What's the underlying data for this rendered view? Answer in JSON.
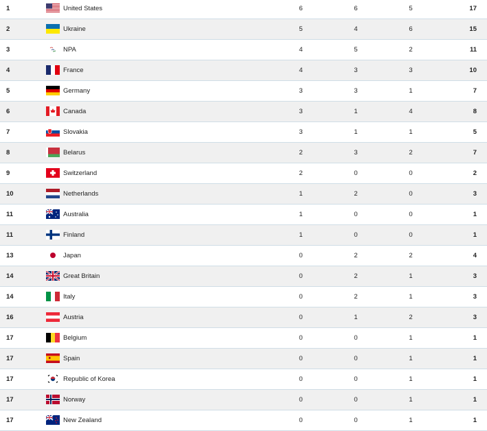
{
  "rows": [
    {
      "rank": "1",
      "country": "United States",
      "flag": "us-flag-icon",
      "gold": "6",
      "silver": "6",
      "bronze": "5",
      "total": "17"
    },
    {
      "rank": "2",
      "country": "Ukraine",
      "flag": "ukraine-flag-icon",
      "gold": "5",
      "silver": "4",
      "bronze": "6",
      "total": "15"
    },
    {
      "rank": "3",
      "country": "NPA",
      "flag": "paralympic-flag-icon",
      "gold": "4",
      "silver": "5",
      "bronze": "2",
      "total": "11"
    },
    {
      "rank": "4",
      "country": "France",
      "flag": "france-flag-icon",
      "gold": "4",
      "silver": "3",
      "bronze": "3",
      "total": "10"
    },
    {
      "rank": "5",
      "country": "Germany",
      "flag": "germany-flag-icon",
      "gold": "3",
      "silver": "3",
      "bronze": "1",
      "total": "7"
    },
    {
      "rank": "6",
      "country": "Canada",
      "flag": "canada-flag-icon",
      "gold": "3",
      "silver": "1",
      "bronze": "4",
      "total": "8"
    },
    {
      "rank": "7",
      "country": "Slovakia",
      "flag": "slovakia-flag-icon",
      "gold": "3",
      "silver": "1",
      "bronze": "1",
      "total": "5"
    },
    {
      "rank": "8",
      "country": "Belarus",
      "flag": "belarus-flag-icon",
      "gold": "2",
      "silver": "3",
      "bronze": "2",
      "total": "7"
    },
    {
      "rank": "9",
      "country": "Switzerland",
      "flag": "switzerland-flag-icon",
      "gold": "2",
      "silver": "0",
      "bronze": "0",
      "total": "2"
    },
    {
      "rank": "10",
      "country": "Netherlands",
      "flag": "netherlands-flag-icon",
      "gold": "1",
      "silver": "2",
      "bronze": "0",
      "total": "3"
    },
    {
      "rank": "11",
      "country": "Australia",
      "flag": "australia-flag-icon",
      "gold": "1",
      "silver": "0",
      "bronze": "0",
      "total": "1"
    },
    {
      "rank": "11",
      "country": "Finland",
      "flag": "finland-flag-icon",
      "gold": "1",
      "silver": "0",
      "bronze": "0",
      "total": "1"
    },
    {
      "rank": "13",
      "country": "Japan",
      "flag": "japan-flag-icon",
      "gold": "0",
      "silver": "2",
      "bronze": "2",
      "total": "4"
    },
    {
      "rank": "14",
      "country": "Great Britain",
      "flag": "gb-flag-icon",
      "gold": "0",
      "silver": "2",
      "bronze": "1",
      "total": "3"
    },
    {
      "rank": "14",
      "country": "Italy",
      "flag": "italy-flag-icon",
      "gold": "0",
      "silver": "2",
      "bronze": "1",
      "total": "3"
    },
    {
      "rank": "16",
      "country": "Austria",
      "flag": "austria-flag-icon",
      "gold": "0",
      "silver": "1",
      "bronze": "2",
      "total": "3"
    },
    {
      "rank": "17",
      "country": "Belgium",
      "flag": "belgium-flag-icon",
      "gold": "0",
      "silver": "0",
      "bronze": "1",
      "total": "1"
    },
    {
      "rank": "17",
      "country": "Spain",
      "flag": "spain-flag-icon",
      "gold": "0",
      "silver": "0",
      "bronze": "1",
      "total": "1"
    },
    {
      "rank": "17",
      "country": "Republic of Korea",
      "flag": "korea-flag-icon",
      "gold": "0",
      "silver": "0",
      "bronze": "1",
      "total": "1"
    },
    {
      "rank": "17",
      "country": "Norway",
      "flag": "norway-flag-icon",
      "gold": "0",
      "silver": "0",
      "bronze": "1",
      "total": "1"
    },
    {
      "rank": "17",
      "country": "New Zealand",
      "flag": "new-zealand-flag-icon",
      "gold": "0",
      "silver": "0",
      "bronze": "1",
      "total": "1"
    }
  ]
}
